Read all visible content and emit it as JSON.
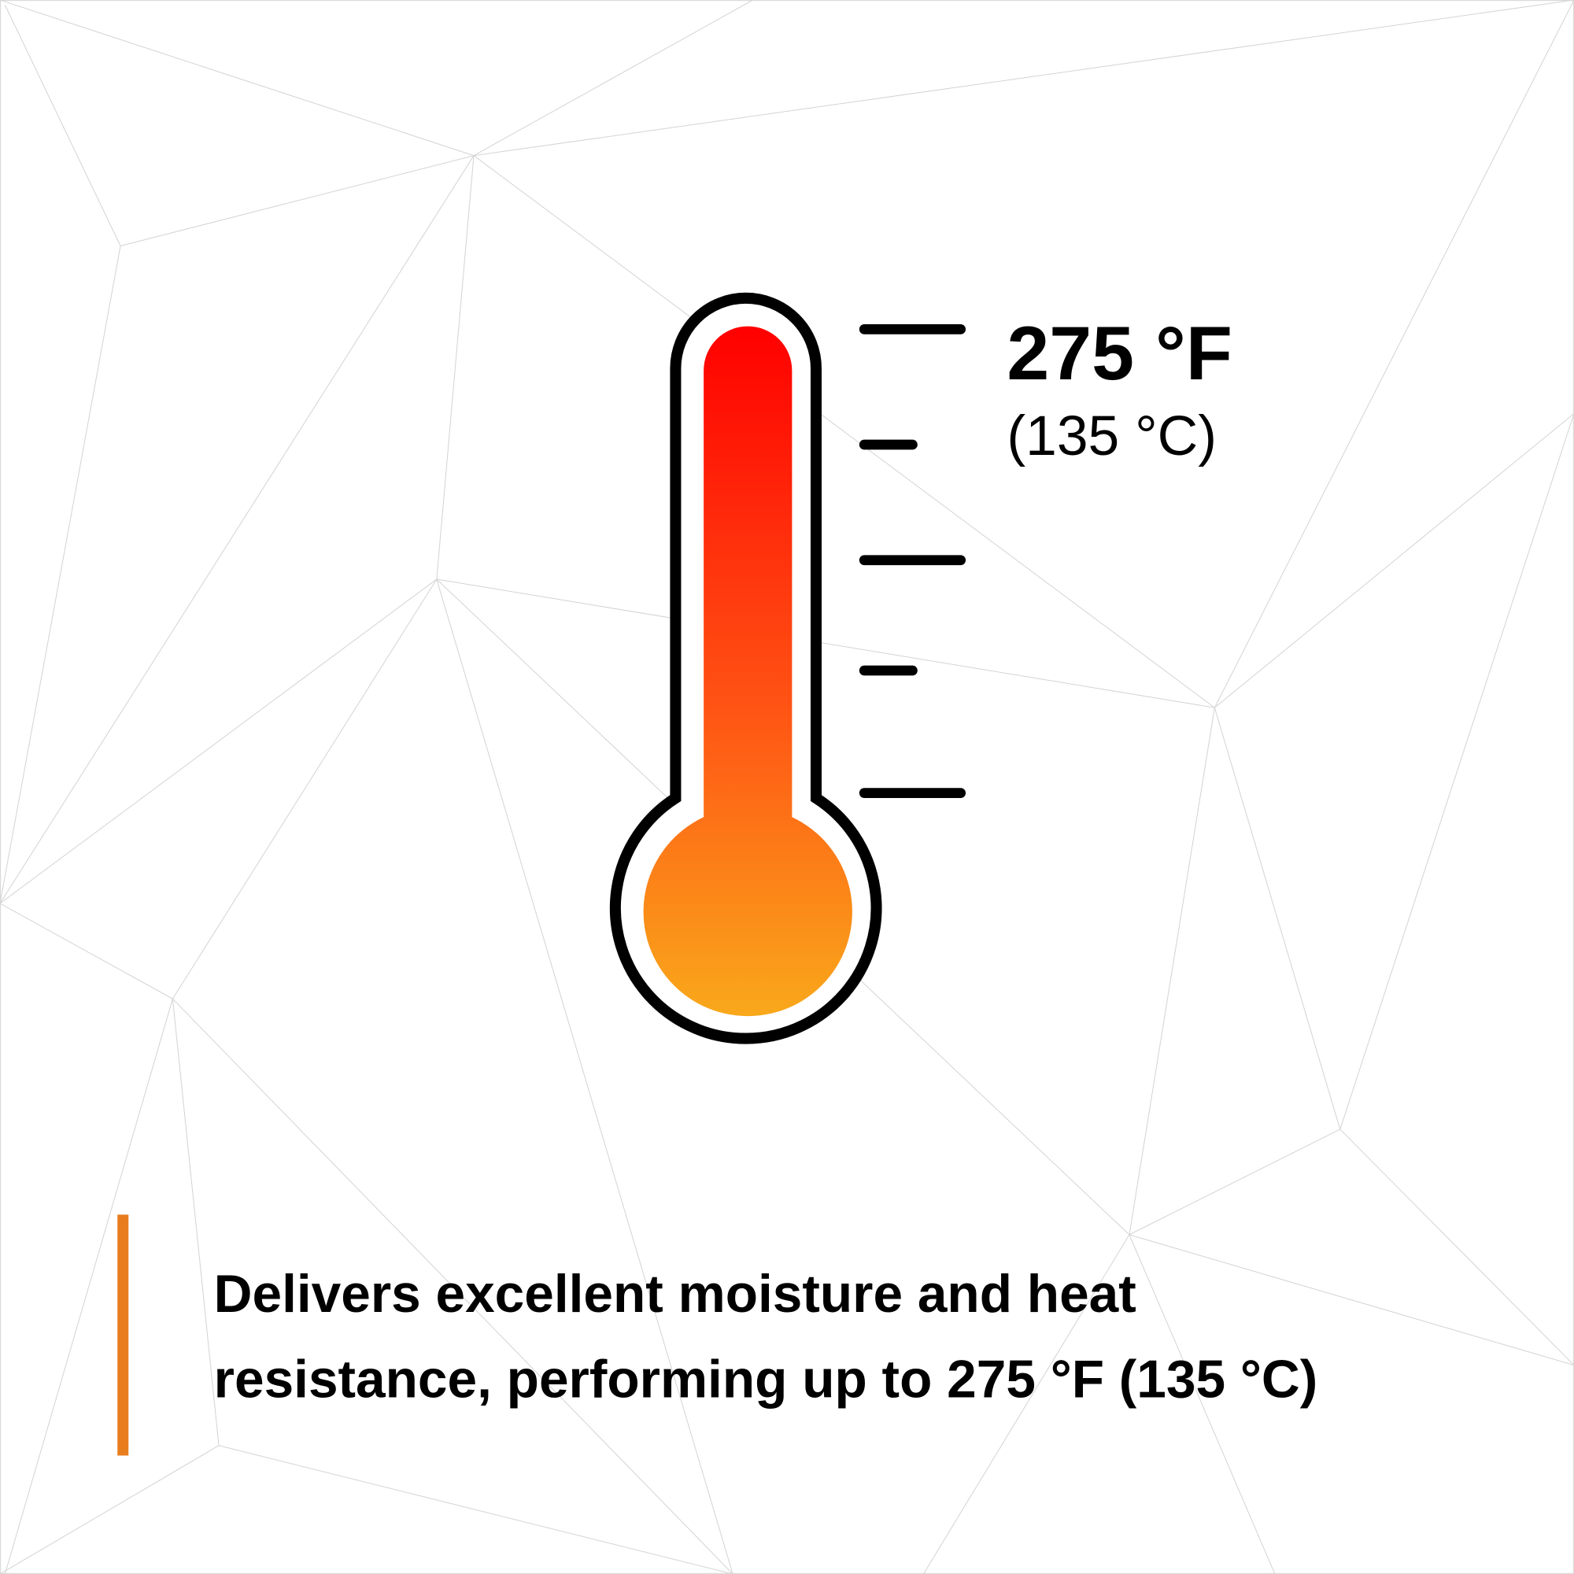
{
  "thermometer": {
    "reading_f": "275 °F",
    "reading_c": "(135 °C)",
    "gradient_top": "#ff0000",
    "gradient_bottom": "#f9a81b"
  },
  "caption": {
    "line1": "Delivers excellent moisture and heat",
    "line2": "resistance, performing up to 275 °F (135 °C)",
    "accent_color": "#e87d1e"
  }
}
